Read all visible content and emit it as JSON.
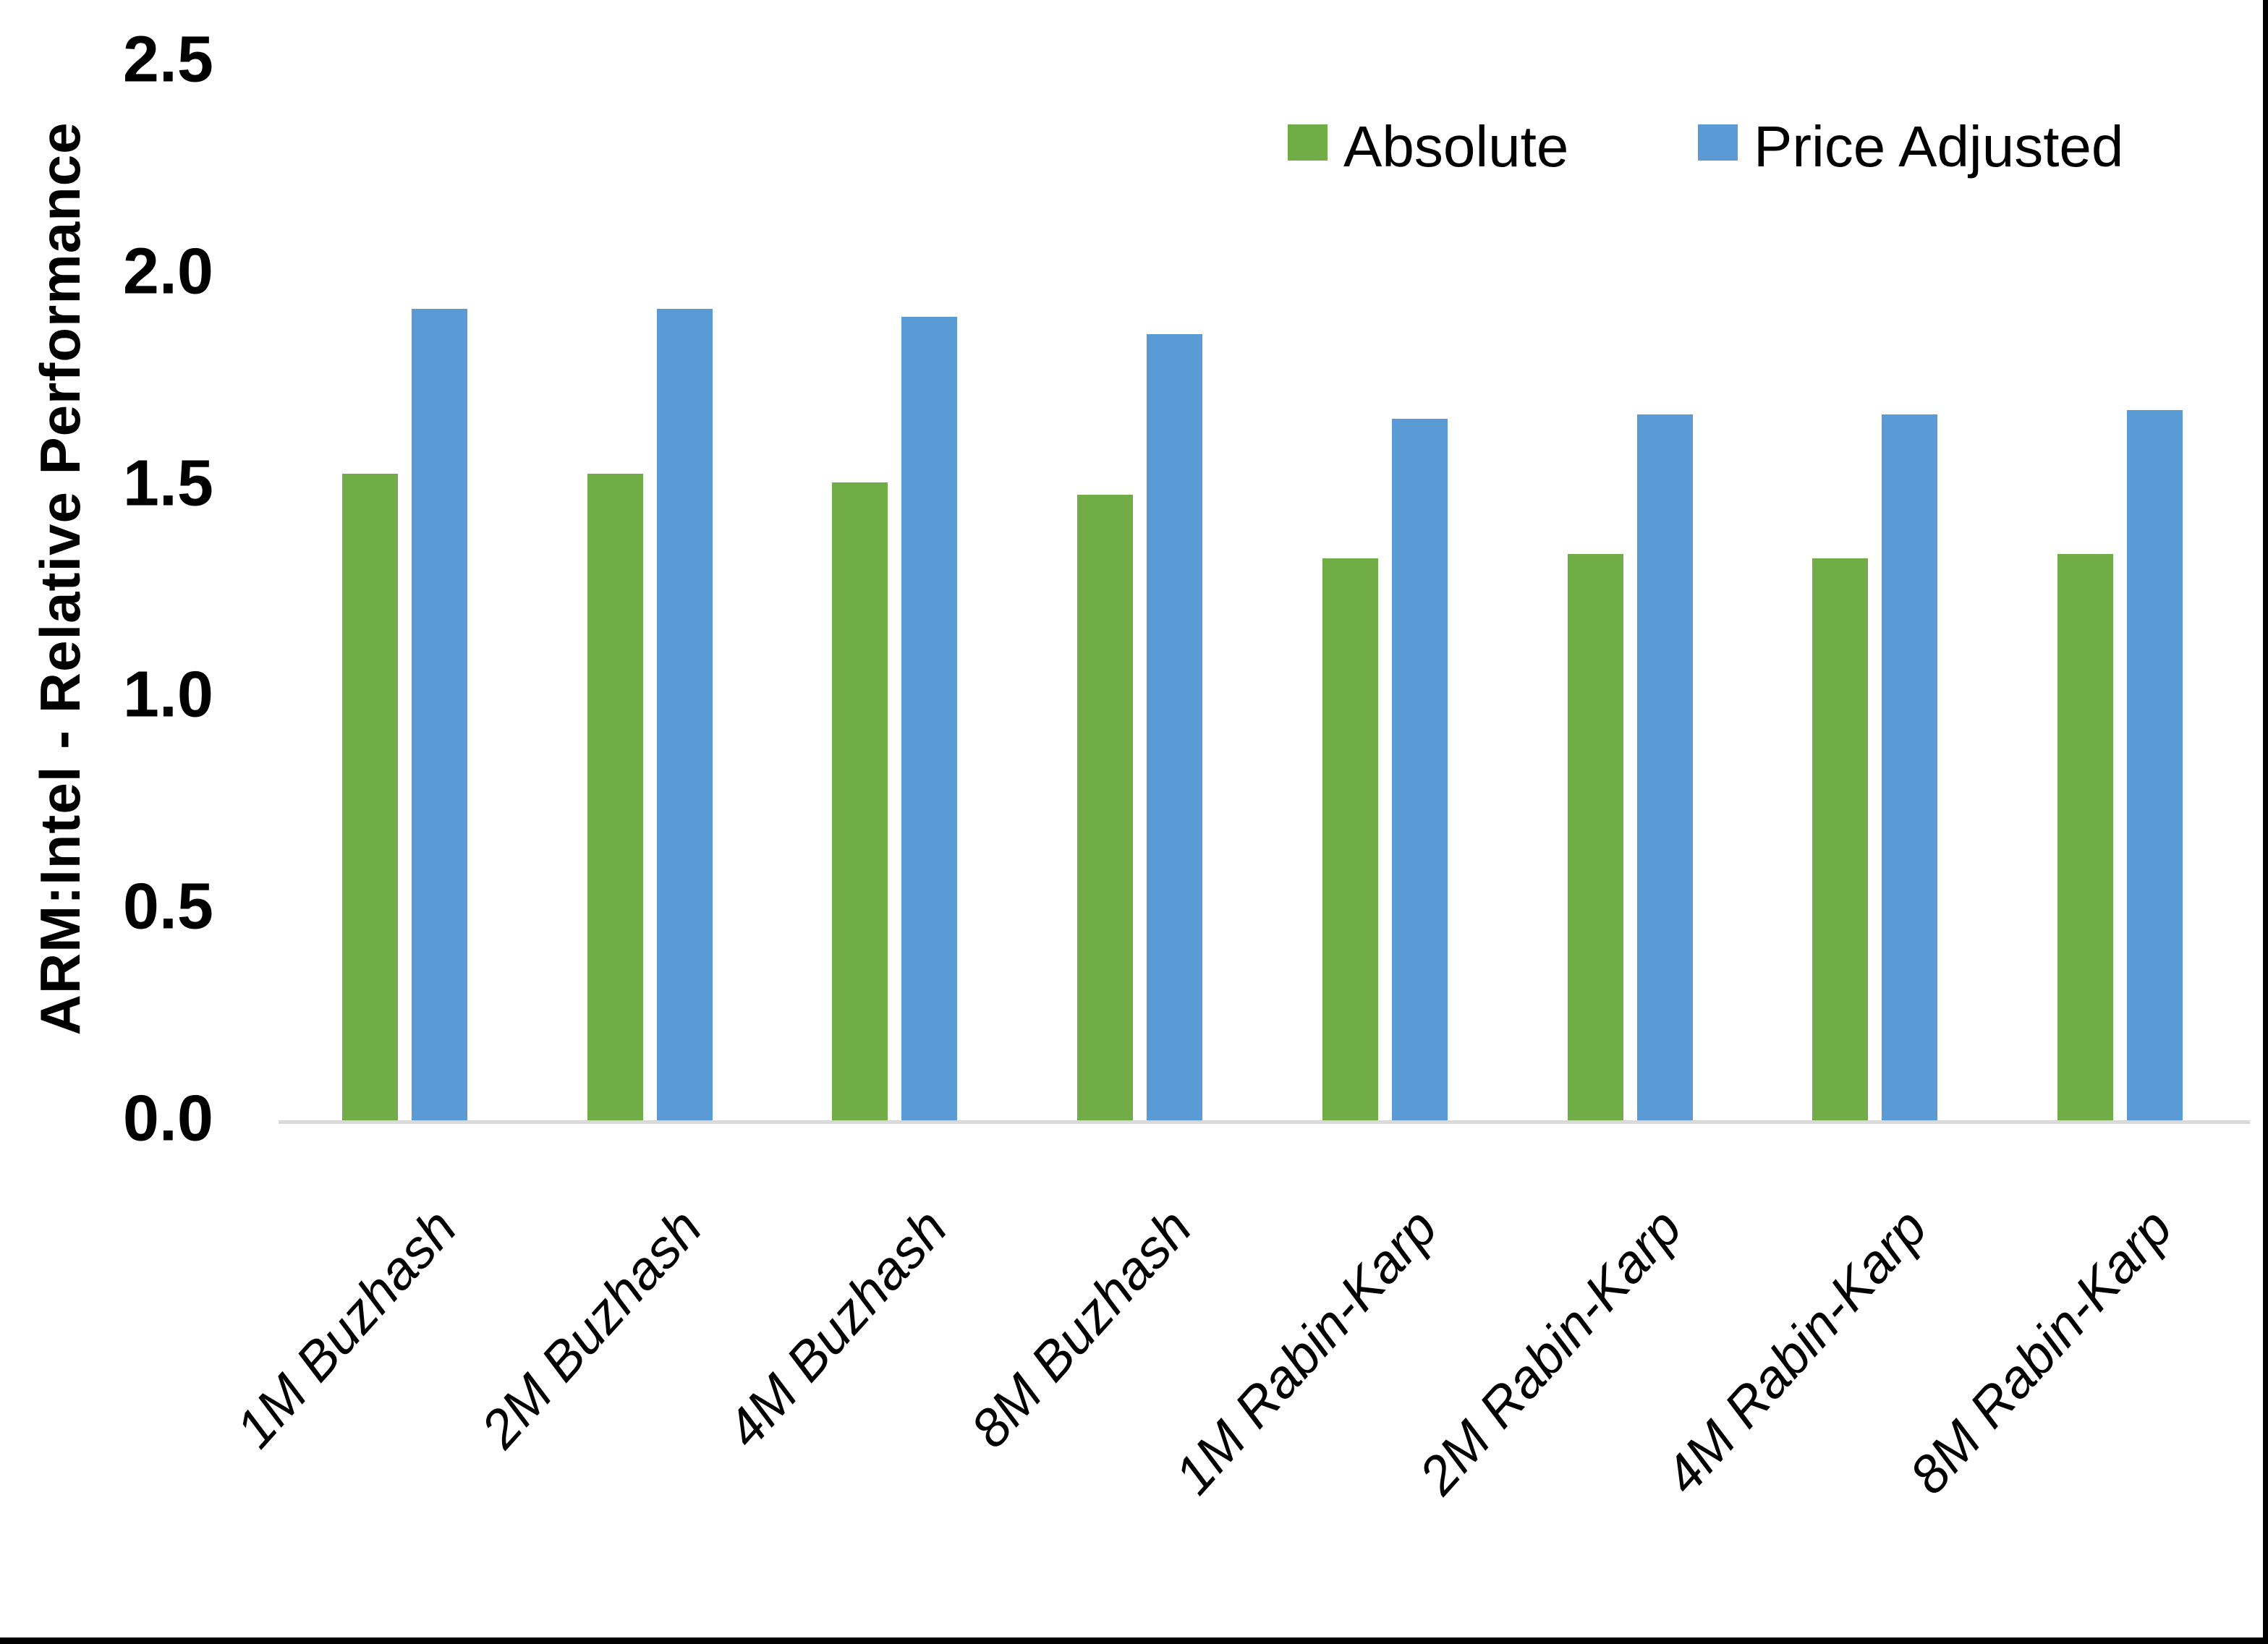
{
  "chart_data": {
    "type": "bar",
    "categories": [
      "1M Buzhash",
      "2M Buzhash",
      "4M Buzhash",
      "8M Buzhash",
      "1M Rabin-Karp",
      "2M Rabin-Karp",
      "4M Rabin-Karp",
      "8M Rabin-Karp"
    ],
    "series": [
      {
        "name": "Absolute",
        "color": "#70AD47",
        "values": [
          1.53,
          1.53,
          1.51,
          1.48,
          1.33,
          1.34,
          1.33,
          1.34
        ]
      },
      {
        "name": "Price Adjusted",
        "color": "#5B9BD5",
        "values": [
          1.92,
          1.92,
          1.9,
          1.86,
          1.66,
          1.67,
          1.67,
          1.68
        ]
      }
    ],
    "title": "",
    "xlabel": "",
    "ylabel": "ARM:Intel - Relative Performance",
    "ylim": [
      0,
      2.5
    ],
    "yticks": [
      "0.0",
      "0.5",
      "1.0",
      "1.5",
      "2.0",
      "2.5"
    ],
    "grid": "off",
    "legend_position": "top-right",
    "axis_line_color": "#d9d9d9",
    "text_color": "#000000"
  }
}
